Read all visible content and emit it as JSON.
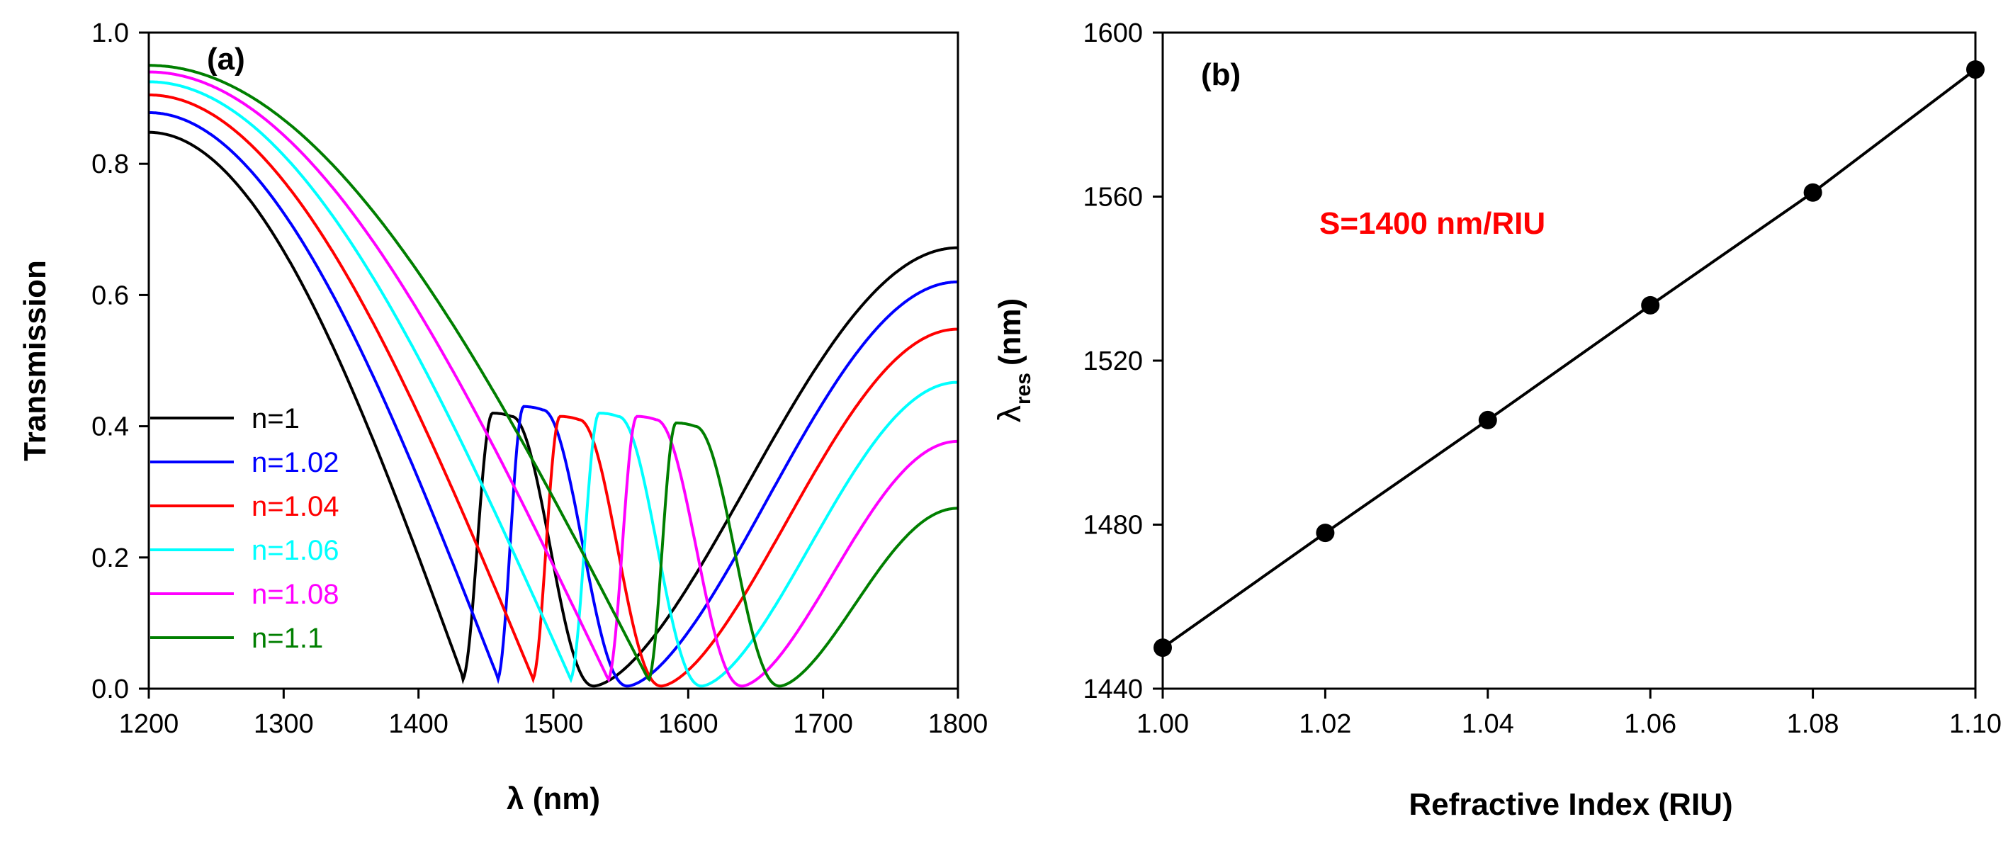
{
  "chart_data": [
    {
      "type": "line",
      "panel_label": "(a)",
      "xlabel": "λ (nm)",
      "ylabel": "Transmission",
      "xlim": [
        1200,
        1800
      ],
      "ylim": [
        0,
        1.0
      ],
      "xticks": [
        "1200",
        "1300",
        "1400",
        "1500",
        "1600",
        "1700",
        "1800"
      ],
      "yticks": [
        "0.0",
        "0.2",
        "0.4",
        "0.6",
        "0.8",
        "1.0"
      ],
      "legend_position": "left-middle",
      "series": [
        {
          "name": "n=1",
          "color": "#000000",
          "t0": 0.848,
          "t1800": 0.672,
          "res_dip": 1432,
          "peak": 1455,
          "peak_val": 0.42,
          "broad_dip": 1530
        },
        {
          "name": "n=1.02",
          "color": "#0000FF",
          "t0": 0.878,
          "t1800": 0.62,
          "res_dip": 1458,
          "peak": 1478,
          "peak_val": 0.43,
          "broad_dip": 1555
        },
        {
          "name": "n=1.04",
          "color": "#FF0000",
          "t0": 0.905,
          "t1800": 0.548,
          "res_dip": 1484,
          "peak": 1505,
          "peak_val": 0.415,
          "broad_dip": 1580
        },
        {
          "name": "n=1.06",
          "color": "#00FFFF",
          "t0": 0.925,
          "t1800": 0.467,
          "res_dip": 1512,
          "peak": 1534,
          "peak_val": 0.42,
          "broad_dip": 1610
        },
        {
          "name": "n=1.08",
          "color": "#FF00FF",
          "t0": 0.94,
          "t1800": 0.377,
          "res_dip": 1540,
          "peak": 1562,
          "peak_val": 0.415,
          "broad_dip": 1640
        },
        {
          "name": "n=1.1",
          "color": "#007F00",
          "t0": 0.95,
          "t1800": 0.275,
          "res_dip": 1570,
          "peak": 1591,
          "peak_val": 0.405,
          "broad_dip": 1668
        }
      ]
    },
    {
      "type": "line",
      "panel_label": "(b)",
      "xlabel": "Refractive Index (RIU)",
      "ylabel_main": "λ",
      "ylabel_sub": "res",
      "ylabel_unit": "(nm)",
      "xlim": [
        1.0,
        1.1
      ],
      "ylim": [
        1440,
        1600
      ],
      "xticks": [
        "1.00",
        "1.02",
        "1.04",
        "1.06",
        "1.08",
        "1.10"
      ],
      "yticks": [
        "1440",
        "1480",
        "1520",
        "1560",
        "1600"
      ],
      "annotation": "S=1400 nm/RIU",
      "annotation_color": "#FF0000",
      "x": [
        1.0,
        1.02,
        1.04,
        1.06,
        1.08,
        1.1
      ],
      "y": [
        1450,
        1478,
        1505.5,
        1533.5,
        1561,
        1591
      ]
    }
  ]
}
